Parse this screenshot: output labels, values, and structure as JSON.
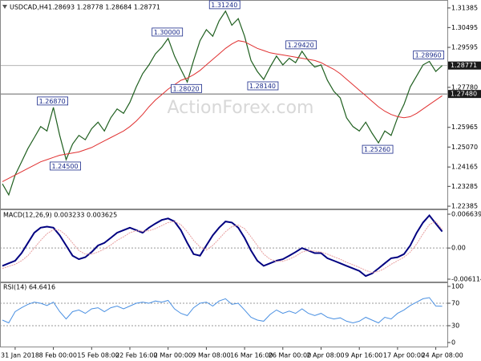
{
  "chart_data": [
    {
      "type": "line",
      "title": "USDCAD,H4",
      "subtitle": "1.28693 1.28778 1.28684 1.28771",
      "watermark": "ActionForex.com",
      "categories": [
        null,
        null,
        "31 Jan 2018",
        null,
        null,
        null,
        null,
        null,
        "8 Feb 00:00",
        null,
        null,
        null,
        null,
        null,
        "15 Feb 08:00",
        null,
        null,
        null,
        null,
        null,
        "22 Feb 16:00",
        null,
        null,
        null,
        null,
        null,
        "2 Mar 00:00",
        null,
        null,
        null,
        null,
        null,
        "9 Mar 08:00",
        null,
        null,
        null,
        null,
        null,
        "16 Mar 16:00",
        null,
        null,
        null,
        null,
        null,
        "26 Mar 00:00",
        null,
        null,
        null,
        null,
        null,
        "2 Apr 08:00",
        null,
        null,
        null,
        null,
        null,
        "9 Apr 16:00",
        null,
        null,
        null,
        null,
        null,
        "17 Apr 00:00",
        null,
        null,
        null,
        null,
        null,
        "24 Apr 08:00",
        null
      ],
      "series": [
        {
          "color": "#1f5f1f",
          "values": [
            1.234,
            1.229,
            1.238,
            1.244,
            1.25,
            1.255,
            1.26,
            1.258,
            1.2687,
            1.256,
            1.245,
            1.252,
            1.256,
            1.254,
            1.259,
            1.262,
            1.258,
            1.264,
            1.268,
            1.266,
            1.271,
            1.278,
            1.284,
            1.288,
            1.293,
            1.296,
            1.3,
            1.292,
            1.286,
            1.2802,
            1.29,
            1.299,
            1.304,
            1.301,
            1.308,
            1.3124,
            1.306,
            1.309,
            1.301,
            1.29,
            1.285,
            1.2814,
            1.287,
            1.292,
            1.288,
            1.291,
            1.289,
            1.2942,
            1.29,
            1.287,
            1.288,
            1.281,
            1.276,
            1.273,
            1.264,
            1.26,
            1.258,
            1.262,
            1.257,
            1.2526,
            1.258,
            1.256,
            1.264,
            1.27,
            1.278,
            1.283,
            1.288,
            1.2896,
            1.285,
            1.2877
          ]
        },
        {
          "color": "#e03030",
          "values": [
            1.235,
            1.2365,
            1.238,
            1.2395,
            1.241,
            1.2425,
            1.244,
            1.245,
            1.246,
            1.247,
            1.2475,
            1.248,
            1.2485,
            1.2495,
            1.2505,
            1.252,
            1.2535,
            1.255,
            1.2565,
            1.258,
            1.26,
            1.2625,
            1.2655,
            1.269,
            1.272,
            1.2745,
            1.277,
            1.279,
            1.281,
            1.282,
            1.2835,
            1.2855,
            1.288,
            1.2905,
            1.293,
            1.2955,
            1.2975,
            1.299,
            1.2985,
            1.297,
            1.2955,
            1.2945,
            1.2935,
            1.293,
            1.2925,
            1.292,
            1.2915,
            1.291,
            1.2905,
            1.29,
            1.289,
            1.2875,
            1.286,
            1.284,
            1.2815,
            1.279,
            1.2765,
            1.274,
            1.2715,
            1.269,
            1.267,
            1.2655,
            1.2645,
            1.264,
            1.2645,
            1.266,
            1.268,
            1.27,
            1.272,
            1.274
          ]
        }
      ],
      "annotations": [
        {
          "value": 1.2687,
          "label": "1.26870"
        },
        {
          "value": 1.245,
          "label": "1.24500"
        },
        {
          "value": 1.3,
          "label": "1.30000"
        },
        {
          "value": 1.2802,
          "label": "1.28020"
        },
        {
          "value": 1.3124,
          "label": "1.31240"
        },
        {
          "value": 1.2814,
          "label": "1.28140"
        },
        {
          "value": 1.2942,
          "label": "1.29420"
        },
        {
          "value": 1.2526,
          "label": "1.25260"
        },
        {
          "value": 1.2896,
          "label": "1.28960"
        }
      ],
      "hlines": [
        1.28771,
        {
          "value": 1.2748,
          "label": "1.27480"
        }
      ],
      "ylim": [
        1.2235,
        1.316
      ],
      "yticks": [
        1.31385,
        1.30495,
        1.29595,
        {
          "value": 1.2778,
          "label": "1.27780"
        },
        1.25965,
        {
          "value": 1.2507,
          "label": "1.25070"
        },
        1.24165,
        1.23285,
        1.22385
      ]
    },
    {
      "type": "line",
      "title": "MACD(12,26,9) 0.003233 0.003625",
      "series": [
        {
          "color": "#000080",
          "values": [
            -0.0035,
            -0.003,
            -0.0025,
            -0.001,
            0.001,
            0.003,
            0.004,
            0.0042,
            0.004,
            0.0025,
            0.0005,
            -0.0015,
            -0.0022,
            -0.0018,
            -0.0008,
            0.0005,
            0.001,
            0.002,
            0.003,
            0.0035,
            0.004,
            0.0035,
            0.003,
            0.004,
            0.0048,
            0.0055,
            0.0058,
            0.0052,
            0.0035,
            0.001,
            -0.0012,
            -0.0015,
            0.0005,
            0.0025,
            0.004,
            0.0052,
            0.005,
            0.004,
            0.002,
            -0.0005,
            -0.0025,
            -0.0035,
            -0.003,
            -0.0025,
            -0.0022,
            -0.0015,
            -0.0008,
            0.0,
            -0.0005,
            -0.001,
            -0.001,
            -0.002,
            -0.0025,
            -0.003,
            -0.0035,
            -0.004,
            -0.0045,
            -0.0055,
            -0.005,
            -0.004,
            -0.003,
            -0.002,
            -0.0018,
            -0.0012,
            0.0005,
            0.003,
            0.005,
            0.0064,
            0.0048,
            0.003233
          ]
        },
        {
          "color": "#e8a0a0",
          "values": [
            -0.004,
            -0.0036,
            -0.0032,
            -0.0025,
            -0.0015,
            0.0,
            0.0015,
            0.0028,
            0.0036,
            0.0035,
            0.0025,
            0.001,
            -0.0005,
            -0.0012,
            -0.0012,
            -0.0008,
            -0.0002,
            0.0006,
            0.0015,
            0.0022,
            0.003,
            0.0034,
            0.0033,
            0.0034,
            0.0038,
            0.0044,
            0.005,
            0.0052,
            0.0046,
            0.0032,
            0.0015,
            0.0002,
            -0.0004,
            0.0005,
            0.0018,
            0.0032,
            0.0042,
            0.0045,
            0.0038,
            0.0022,
            0.0005,
            -0.0012,
            -0.0022,
            -0.0026,
            -0.0026,
            -0.0022,
            -0.0016,
            -0.0008,
            -0.0005,
            -0.0006,
            -0.0008,
            -0.0012,
            -0.0017,
            -0.0022,
            -0.0028,
            -0.0033,
            -0.0038,
            -0.0044,
            -0.0048,
            -0.0046,
            -0.004,
            -0.0032,
            -0.0025,
            -0.0018,
            -0.0008,
            0.0008,
            0.0028,
            0.0046,
            0.0052,
            0.003625
          ]
        }
      ],
      "ylim": [
        -0.006114,
        0.006639
      ],
      "yticks": [
        0.006639,
        {
          "value": 0,
          "label": "0.00"
        },
        -0.006114
      ]
    },
    {
      "type": "line",
      "title": "RSI(14) 64.6416",
      "series": [
        {
          "color": "#4a90e2",
          "values": [
            40,
            35,
            55,
            62,
            68,
            72,
            70,
            66,
            72,
            55,
            42,
            55,
            58,
            52,
            60,
            62,
            55,
            62,
            65,
            60,
            65,
            70,
            72,
            70,
            74,
            72,
            75,
            60,
            52,
            48,
            62,
            70,
            72,
            65,
            74,
            78,
            68,
            70,
            58,
            45,
            40,
            38,
            50,
            58,
            52,
            56,
            52,
            60,
            52,
            48,
            52,
            45,
            42,
            44,
            38,
            35,
            38,
            45,
            40,
            35,
            45,
            42,
            52,
            58,
            66,
            72,
            78,
            80,
            65,
            64.6416
          ]
        }
      ],
      "ylim": [
        0,
        100
      ],
      "yticks": [
        100,
        70,
        30,
        0
      ]
    }
  ]
}
